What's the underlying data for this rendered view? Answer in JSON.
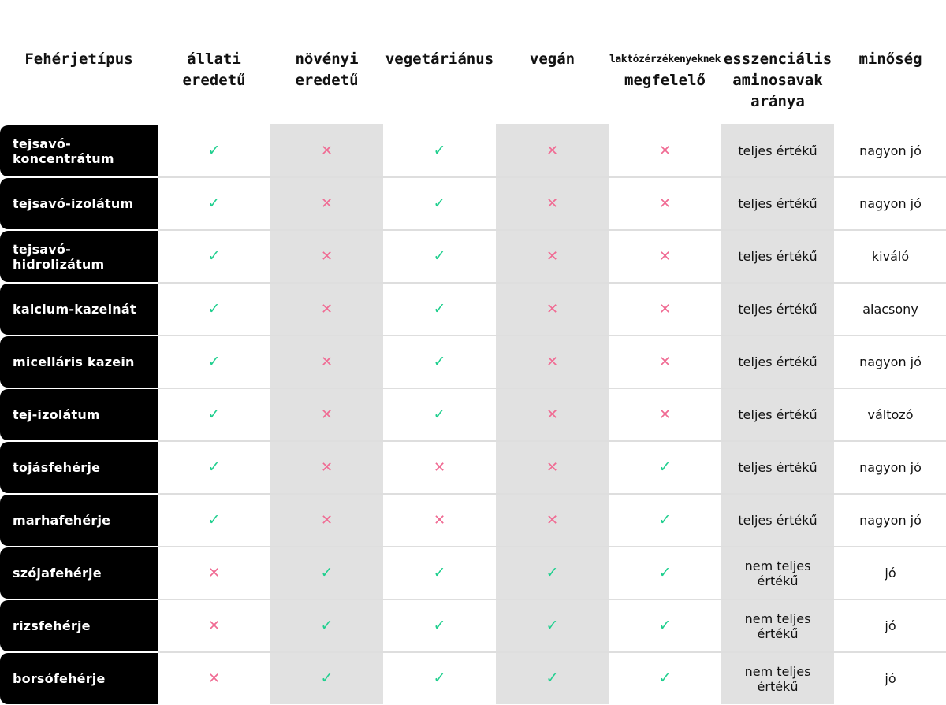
{
  "colors": {
    "check": "#1fcf8e",
    "cross": "#f06b93",
    "shaded_column": "#e1e1e1",
    "row_label_bg": "#000000"
  },
  "icons": {
    "yes": "✓",
    "no": "✕"
  },
  "headers": [
    {
      "top": "Fehérjetípus",
      "bottom": ""
    },
    {
      "top": "állati",
      "bottom": "eredetű"
    },
    {
      "top": "növényi",
      "bottom": "eredetű"
    },
    {
      "top": "vegetáriánus",
      "bottom": ""
    },
    {
      "top": "vegán",
      "bottom": ""
    },
    {
      "top": "laktózérzékenyeknek",
      "bottom": "megfelelő"
    },
    {
      "top": "esszenciális\naminosavak\naránya",
      "bottom": ""
    },
    {
      "top": "minőség",
      "bottom": ""
    }
  ],
  "rows": [
    {
      "name": "tejsavó-\nkoncentrátum",
      "allati": "yes",
      "novenyi": "no",
      "vegetarianus": "yes",
      "vegan": "no",
      "laktoz": "no",
      "aminosav": "teljes értékű",
      "minoseg": "nagyon jó"
    },
    {
      "name": "tejsavó-izolátum",
      "allati": "yes",
      "novenyi": "no",
      "vegetarianus": "yes",
      "vegan": "no",
      "laktoz": "no",
      "aminosav": "teljes értékű",
      "minoseg": "nagyon jó"
    },
    {
      "name": "tejsavó-\nhidrolizátum",
      "allati": "yes",
      "novenyi": "no",
      "vegetarianus": "yes",
      "vegan": "no",
      "laktoz": "no",
      "aminosav": "teljes értékű",
      "minoseg": "kiváló"
    },
    {
      "name": "kalcium-kazeinát",
      "allati": "yes",
      "novenyi": "no",
      "vegetarianus": "yes",
      "vegan": "no",
      "laktoz": "no",
      "aminosav": "teljes értékű",
      "minoseg": "alacsony"
    },
    {
      "name": "micelláris kazein",
      "allati": "yes",
      "novenyi": "no",
      "vegetarianus": "yes",
      "vegan": "no",
      "laktoz": "no",
      "aminosav": "teljes értékű",
      "minoseg": "nagyon jó"
    },
    {
      "name": "tej-izolátum",
      "allati": "yes",
      "novenyi": "no",
      "vegetarianus": "yes",
      "vegan": "no",
      "laktoz": "no",
      "aminosav": "teljes értékű",
      "minoseg": "változó"
    },
    {
      "name": "tojásfehérje",
      "allati": "yes",
      "novenyi": "no",
      "vegetarianus": "no",
      "vegan": "no",
      "laktoz": "yes",
      "aminosav": "teljes értékű",
      "minoseg": "nagyon jó"
    },
    {
      "name": "marhafehérje",
      "allati": "yes",
      "novenyi": "no",
      "vegetarianus": "no",
      "vegan": "no",
      "laktoz": "yes",
      "aminosav": "teljes értékű",
      "minoseg": "nagyon jó"
    },
    {
      "name": "szójafehérje",
      "allati": "no",
      "novenyi": "yes",
      "vegetarianus": "yes",
      "vegan": "yes",
      "laktoz": "yes",
      "aminosav": "nem teljes\nértékű",
      "minoseg": "jó"
    },
    {
      "name": "rizsfehérje",
      "allati": "no",
      "novenyi": "yes",
      "vegetarianus": "yes",
      "vegan": "yes",
      "laktoz": "yes",
      "aminosav": "nem teljes\nértékű",
      "minoseg": "jó"
    },
    {
      "name": "borsófehérje",
      "allati": "no",
      "novenyi": "yes",
      "vegetarianus": "yes",
      "vegan": "yes",
      "laktoz": "yes",
      "aminosav": "nem teljes\nértékű",
      "minoseg": "jó"
    }
  ]
}
